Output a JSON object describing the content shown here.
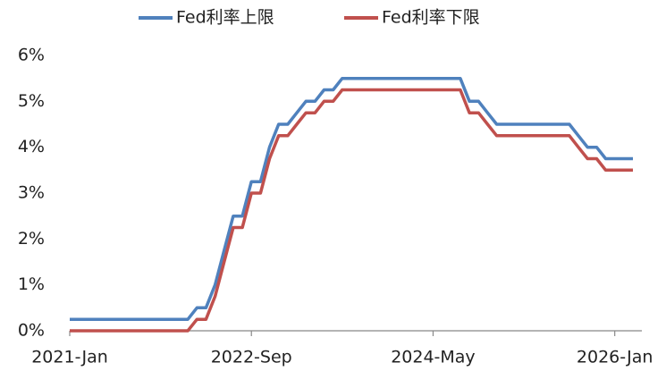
{
  "chart_data": {
    "type": "line",
    "categories": [
      "2021-Jan",
      null,
      null,
      null,
      null,
      null,
      null,
      null,
      null,
      null,
      null,
      null,
      null,
      null,
      null,
      null,
      null,
      null,
      null,
      null,
      "2022-Sep",
      null,
      null,
      null,
      null,
      null,
      null,
      null,
      null,
      null,
      null,
      null,
      null,
      null,
      null,
      null,
      null,
      null,
      null,
      null,
      "2024-May",
      null,
      null,
      null,
      null,
      null,
      null,
      null,
      null,
      null,
      null,
      null,
      null,
      null,
      null,
      null,
      null,
      null,
      null,
      null,
      "2026-Jan",
      null,
      null
    ],
    "series": [
      {
        "name": "Fed利率上限",
        "color": "#4f81bd",
        "values": [
          0.25,
          0.25,
          0.25,
          0.25,
          0.25,
          0.25,
          0.25,
          0.25,
          0.25,
          0.25,
          0.25,
          0.25,
          0.25,
          0.25,
          0.5,
          0.5,
          1.0,
          1.75,
          2.5,
          2.5,
          3.25,
          3.25,
          4.0,
          4.5,
          4.5,
          4.75,
          5.0,
          5.0,
          5.25,
          5.25,
          5.5,
          5.5,
          5.5,
          5.5,
          5.5,
          5.5,
          5.5,
          5.5,
          5.5,
          5.5,
          5.5,
          5.5,
          5.5,
          5.5,
          5.0,
          5.0,
          4.75,
          4.5,
          4.5,
          4.5,
          4.5,
          4.5,
          4.5,
          4.5,
          4.5,
          4.5,
          4.25,
          4.0,
          4.0,
          3.75,
          3.75,
          3.75,
          3.75
        ]
      },
      {
        "name": "Fed利率下限",
        "color": "#c0504d",
        "values": [
          0,
          0,
          0,
          0,
          0,
          0,
          0,
          0,
          0,
          0,
          0,
          0,
          0,
          0,
          0.25,
          0.25,
          0.75,
          1.5,
          2.25,
          2.25,
          3.0,
          3.0,
          3.75,
          4.25,
          4.25,
          4.5,
          4.75,
          4.75,
          5.0,
          5.0,
          5.25,
          5.25,
          5.25,
          5.25,
          5.25,
          5.25,
          5.25,
          5.25,
          5.25,
          5.25,
          5.25,
          5.25,
          5.25,
          5.25,
          4.75,
          4.75,
          4.5,
          4.25,
          4.25,
          4.25,
          4.25,
          4.25,
          4.25,
          4.25,
          4.25,
          4.25,
          4.0,
          3.75,
          3.75,
          3.5,
          3.5,
          3.5,
          3.5
        ]
      }
    ],
    "ylim": [
      0,
      6
    ],
    "yticks": [
      {
        "value": 0,
        "label": "0%"
      },
      {
        "value": 1,
        "label": "1%"
      },
      {
        "value": 2,
        "label": "2%"
      },
      {
        "value": 3,
        "label": "3%"
      },
      {
        "value": 4,
        "label": "4%"
      },
      {
        "value": 5,
        "label": "5%"
      },
      {
        "value": 6,
        "label": "6%"
      }
    ],
    "grid": false,
    "legend": "top"
  }
}
